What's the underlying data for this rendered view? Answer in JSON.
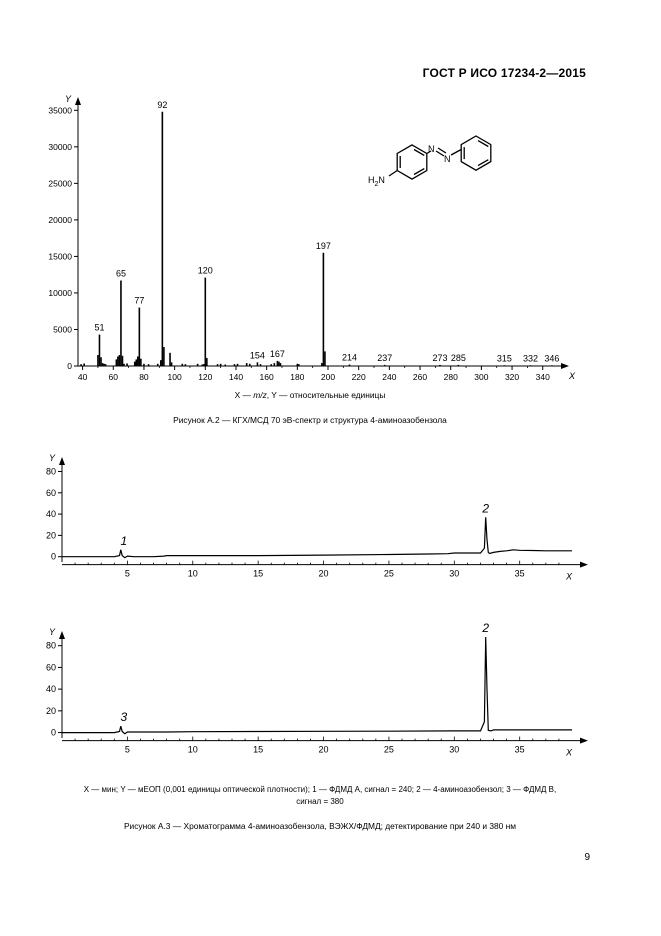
{
  "header": {
    "standard": "ГОСТ Р ИСО 17234-2—2015"
  },
  "figure_a2": {
    "structure": {
      "amine_label": "H",
      "amine_sub": "2",
      "amine_n": "N",
      "azo_n1": "N",
      "azo_n2": "N"
    },
    "axes_legend_prefix": "X — ",
    "axes_legend_x": "m/z",
    "axes_legend_mid": ", Y — ",
    "axes_legend_suffix": "относительные единицы",
    "caption": "Рисунок А.2 — КГХ/МСД 70 эВ-спектр и структура 4-аминоазобензола"
  },
  "figure_a3": {
    "legend_line1": "X — мин; Y — мЕОП (0,001 единицы оптической плотности); 1 — ФДМД А, сигнал = 240; 2 — 4-аминоазобензол; 3 — ФДМД В,",
    "legend_line2": "сигнал = 380",
    "caption": "Рисунок А.3 — Хроматограмма 4-аминоазобензола, ВЭЖХ/ФДМД; детектирование при 240 и 380 нм"
  },
  "page_number": "9",
  "chart_data": [
    {
      "type": "bar",
      "title": "",
      "xlabel": "X",
      "ylabel": "Y",
      "xlim": [
        37,
        348
      ],
      "ylim": [
        0,
        36000
      ],
      "xticks": [
        40,
        60,
        80,
        100,
        120,
        140,
        160,
        180,
        200,
        220,
        240,
        260,
        280,
        300,
        320,
        340
      ],
      "yticks": [
        0,
        5000,
        10000,
        15000,
        20000,
        25000,
        30000,
        35000
      ],
      "grid": false,
      "peaks": [
        {
          "x": 39,
          "y": 250
        },
        {
          "x": 41,
          "y": 350
        },
        {
          "x": 50,
          "y": 1500
        },
        {
          "x": 51,
          "y": 4300
        },
        {
          "x": 52,
          "y": 1200
        },
        {
          "x": 53,
          "y": 400
        },
        {
          "x": 54,
          "y": 300
        },
        {
          "x": 55,
          "y": 250
        },
        {
          "x": 62,
          "y": 900
        },
        {
          "x": 63,
          "y": 1300
        },
        {
          "x": 64,
          "y": 1500
        },
        {
          "x": 65,
          "y": 11700
        },
        {
          "x": 66,
          "y": 1400
        },
        {
          "x": 67,
          "y": 300
        },
        {
          "x": 69,
          "y": 350
        },
        {
          "x": 74,
          "y": 600
        },
        {
          "x": 75,
          "y": 900
        },
        {
          "x": 76,
          "y": 1300
        },
        {
          "x": 77,
          "y": 8000
        },
        {
          "x": 78,
          "y": 1000
        },
        {
          "x": 80,
          "y": 300
        },
        {
          "x": 83,
          "y": 250
        },
        {
          "x": 89,
          "y": 300
        },
        {
          "x": 91,
          "y": 800
        },
        {
          "x": 92,
          "y": 34800
        },
        {
          "x": 93,
          "y": 2600
        },
        {
          "x": 97,
          "y": 1800
        },
        {
          "x": 98,
          "y": 500
        },
        {
          "x": 105,
          "y": 300
        },
        {
          "x": 107,
          "y": 250
        },
        {
          "x": 115,
          "y": 300
        },
        {
          "x": 118,
          "y": 200
        },
        {
          "x": 119,
          "y": 250
        },
        {
          "x": 120,
          "y": 12100
        },
        {
          "x": 121,
          "y": 1100
        },
        {
          "x": 128,
          "y": 250
        },
        {
          "x": 130,
          "y": 300
        },
        {
          "x": 133,
          "y": 200
        },
        {
          "x": 139,
          "y": 250
        },
        {
          "x": 141,
          "y": 300
        },
        {
          "x": 147,
          "y": 400
        },
        {
          "x": 149,
          "y": 300
        },
        {
          "x": 154,
          "y": 500
        },
        {
          "x": 156,
          "y": 250
        },
        {
          "x": 163,
          "y": 250
        },
        {
          "x": 165,
          "y": 400
        },
        {
          "x": 167,
          "y": 700
        },
        {
          "x": 168,
          "y": 600
        },
        {
          "x": 169,
          "y": 400
        },
        {
          "x": 180,
          "y": 300
        },
        {
          "x": 181,
          "y": 250
        },
        {
          "x": 196,
          "y": 400
        },
        {
          "x": 197,
          "y": 15500
        },
        {
          "x": 198,
          "y": 2000
        },
        {
          "x": 214,
          "y": 200
        },
        {
          "x": 237,
          "y": 150
        },
        {
          "x": 273,
          "y": 150
        },
        {
          "x": 285,
          "y": 150
        },
        {
          "x": 315,
          "y": 100
        },
        {
          "x": 332,
          "y": 100
        },
        {
          "x": 346,
          "y": 100
        }
      ],
      "annotations": [
        {
          "label": "51",
          "x": 51,
          "y": 4300
        },
        {
          "label": "65",
          "x": 65,
          "y": 11700
        },
        {
          "label": "77",
          "x": 77,
          "y": 8000
        },
        {
          "label": "92",
          "x": 92,
          "y": 34800
        },
        {
          "label": "120",
          "x": 120,
          "y": 12100
        },
        {
          "label": "154",
          "x": 154,
          "y": 500
        },
        {
          "label": "167",
          "x": 167,
          "y": 700
        },
        {
          "label": "197",
          "x": 197,
          "y": 15500
        },
        {
          "label": "214",
          "x": 214,
          "y": 200
        },
        {
          "label": "237",
          "x": 237,
          "y": 150
        },
        {
          "label": "273",
          "x": 273,
          "y": 150
        },
        {
          "label": "285",
          "x": 285,
          "y": 150
        },
        {
          "label": "315",
          "x": 315,
          "y": 100
        },
        {
          "label": "332",
          "x": 332,
          "y": 100
        },
        {
          "label": "346",
          "x": 346,
          "y": 100
        }
      ]
    },
    {
      "type": "line",
      "title": "",
      "xlabel": "X",
      "ylabel": "Y",
      "xlim": [
        0,
        39
      ],
      "ylim": [
        -5,
        88
      ],
      "xticks": [
        5,
        10,
        15,
        20,
        25,
        30,
        35
      ],
      "yticks": [
        0,
        20,
        40,
        60,
        80
      ],
      "grid": false,
      "x": [
        0,
        2,
        4,
        4.4,
        4.5,
        4.6,
        4.8,
        5,
        5.5,
        7,
        7.8,
        8,
        10,
        15,
        20,
        25,
        28,
        29.5,
        30,
        31,
        32,
        32.3,
        32.4,
        32.5,
        32.6,
        32.7,
        33,
        33.5,
        34,
        34.5,
        35,
        36,
        37,
        38,
        39
      ],
      "y": [
        0,
        0,
        0,
        1,
        6.5,
        1,
        -1,
        0.5,
        0,
        0,
        0.5,
        1,
        1,
        1,
        1.5,
        2,
        2.5,
        2.8,
        3.5,
        3.5,
        3.5,
        8,
        37,
        16,
        4,
        3,
        4,
        5,
        5.5,
        6.5,
        6,
        5.8,
        5.5,
        5.5,
        5.5
      ],
      "peak_labels": [
        {
          "label": "1",
          "x": 4.5,
          "y": 6.5
        },
        {
          "label": "2",
          "x": 32.4,
          "y": 37
        }
      ]
    },
    {
      "type": "line",
      "title": "",
      "xlabel": "X",
      "ylabel": "Y",
      "xlim": [
        0,
        39
      ],
      "ylim": [
        -5,
        88
      ],
      "xticks": [
        5,
        10,
        15,
        20,
        25,
        30,
        35
      ],
      "yticks": [
        0,
        20,
        40,
        60,
        80
      ],
      "grid": false,
      "x": [
        0,
        2,
        4,
        4.4,
        4.5,
        4.6,
        4.8,
        5,
        8,
        10,
        15,
        20,
        25,
        30,
        32,
        32.3,
        32.4,
        32.5,
        32.6,
        32.8,
        33,
        34,
        35,
        37,
        39
      ],
      "y": [
        0,
        0,
        0,
        1,
        6,
        1,
        -1,
        0.5,
        0.5,
        0.8,
        1,
        1.2,
        1.3,
        1.5,
        1.5,
        10,
        88,
        40,
        2,
        1.5,
        2.5,
        2.5,
        2.5,
        2.5,
        2.5
      ],
      "peak_labels": [
        {
          "label": "3",
          "x": 4.5,
          "y": 6
        },
        {
          "label": "2",
          "x": 32.4,
          "y": 88
        }
      ]
    }
  ]
}
